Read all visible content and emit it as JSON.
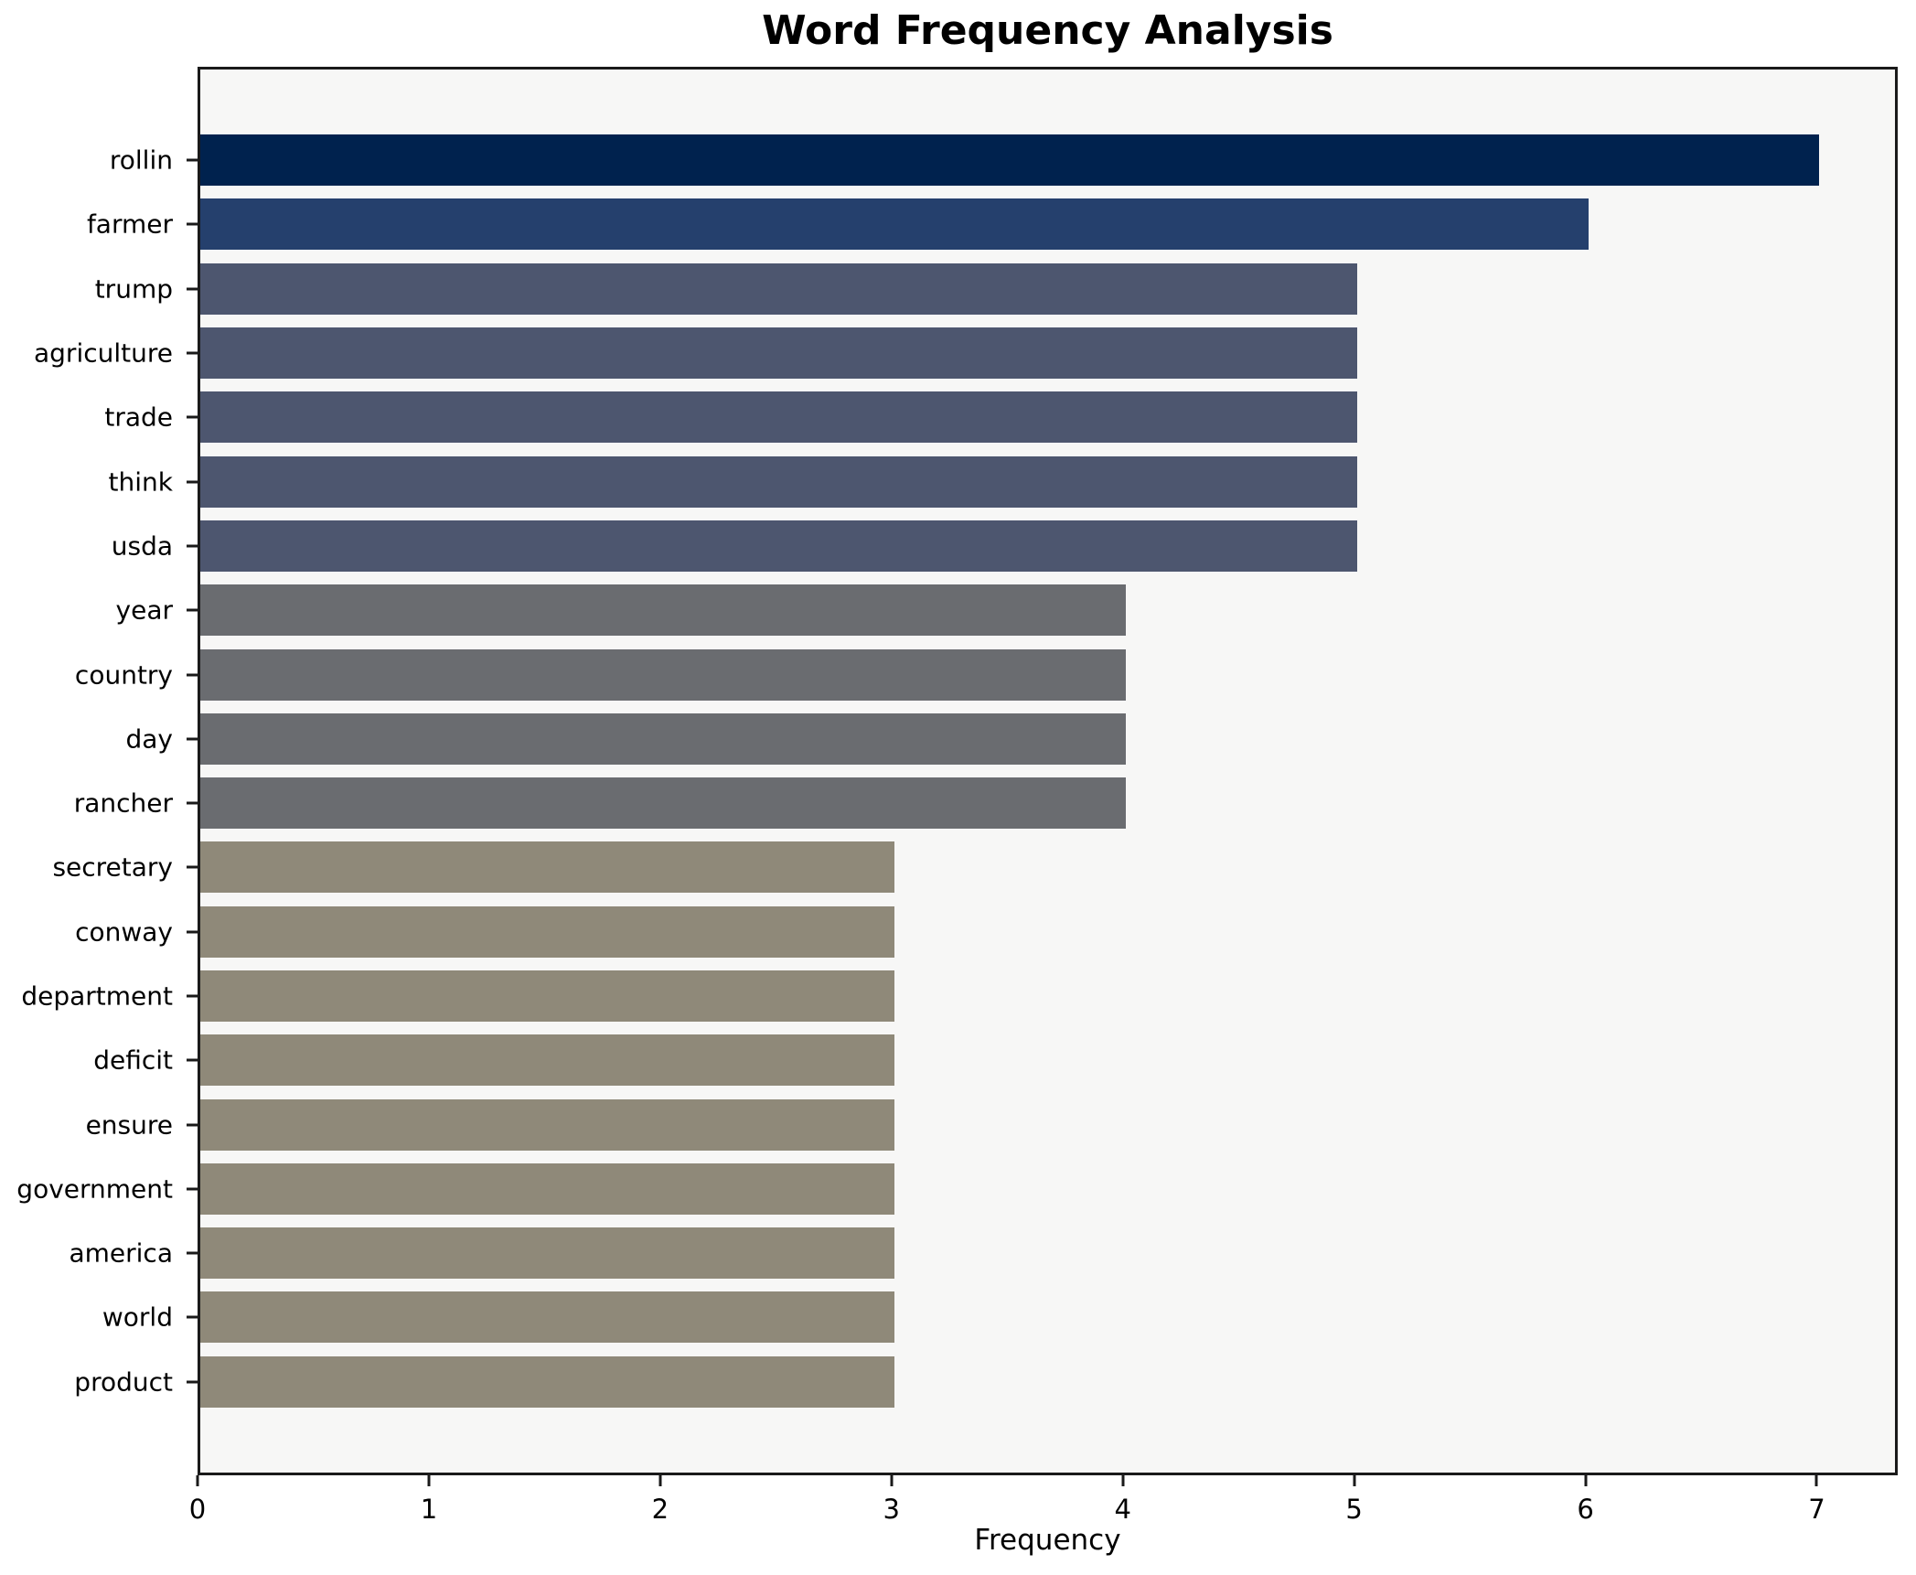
{
  "chart_data": {
    "type": "bar",
    "orientation": "horizontal",
    "title": "Word Frequency Analysis",
    "xlabel": "Frequency",
    "ylabel": "",
    "categories": [
      "rollin",
      "farmer",
      "trump",
      "agriculture",
      "trade",
      "think",
      "usda",
      "year",
      "country",
      "day",
      "rancher",
      "secretary",
      "conway",
      "department",
      "deficit",
      "ensure",
      "government",
      "america",
      "world",
      "product"
    ],
    "values": [
      7,
      6,
      5,
      5,
      5,
      5,
      5,
      4,
      4,
      4,
      4,
      3,
      3,
      3,
      3,
      3,
      3,
      3,
      3,
      3
    ],
    "bar_colors": [
      "#00224e",
      "#25406d",
      "#4d566f",
      "#4d566f",
      "#4d566f",
      "#4d566f",
      "#4d566f",
      "#6a6c70",
      "#6a6c70",
      "#6a6c70",
      "#6a6c70",
      "#8f8979",
      "#8f8979",
      "#8f8979",
      "#8f8979",
      "#8f8979",
      "#8f8979",
      "#8f8979",
      "#8f8979",
      "#8f8979"
    ],
    "x_ticks": [
      0,
      1,
      2,
      3,
      4,
      5,
      6,
      7
    ],
    "xlim": [
      0,
      7.35
    ],
    "grid": false,
    "legend_position": "none",
    "plot_background": "#f7f7f6",
    "spine_color": "#1a1a1a"
  }
}
